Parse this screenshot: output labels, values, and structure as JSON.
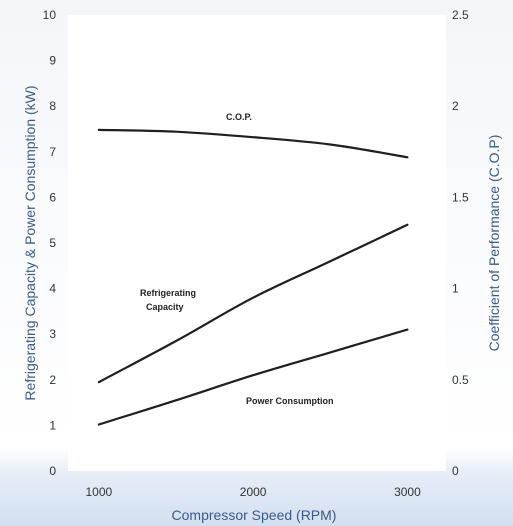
{
  "chart_data": {
    "type": "line",
    "xlabel": "Compressor Speed (RPM)",
    "ylabel_left": "Refrigerating Capacity & Power Consumption (kW)",
    "ylabel_right": "Coefficient of Performance (C.O.P)",
    "xlim": [
      800,
      3250
    ],
    "x_ticks": [
      "1000",
      "2000",
      "3000"
    ],
    "ylim_left": [
      0,
      10
    ],
    "ylim_right": [
      0,
      2.5
    ],
    "y_ticks_left": [
      "0",
      "1",
      "2",
      "3",
      "4",
      "5",
      "6",
      "7",
      "8",
      "9",
      "10"
    ],
    "y_ticks_right": [
      "0",
      "0.5",
      "1",
      "1.5",
      "2",
      "2.5"
    ],
    "grid": false,
    "colors": {
      "plot_background": "#ffffff",
      "axis_label": "#3a5a88",
      "line": "#1f1f1f",
      "tick_text": "#333333"
    },
    "series": [
      {
        "name": "C.O.P.",
        "axis": "right",
        "x": [
          1000,
          1500,
          2000,
          2500,
          3000
        ],
        "y": [
          1.87,
          1.86,
          1.83,
          1.79,
          1.72
        ]
      },
      {
        "name": "Refrigerating Capacity",
        "axis": "left",
        "x": [
          1000,
          1500,
          2000,
          2500,
          3000
        ],
        "y": [
          1.95,
          2.85,
          3.8,
          4.6,
          5.4
        ]
      },
      {
        "name": "Power Consumption",
        "axis": "left",
        "x": [
          1000,
          1500,
          2000,
          2500,
          3000
        ],
        "y": [
          1.02,
          1.55,
          2.1,
          2.6,
          3.1
        ]
      }
    ],
    "annotations": [
      {
        "text": "C.O.P.",
        "series": 0
      },
      {
        "text": "Refrigerating",
        "series": 1
      },
      {
        "text": "Capacity",
        "series": 1
      },
      {
        "text": "Power Consumption",
        "series": 2
      }
    ]
  }
}
